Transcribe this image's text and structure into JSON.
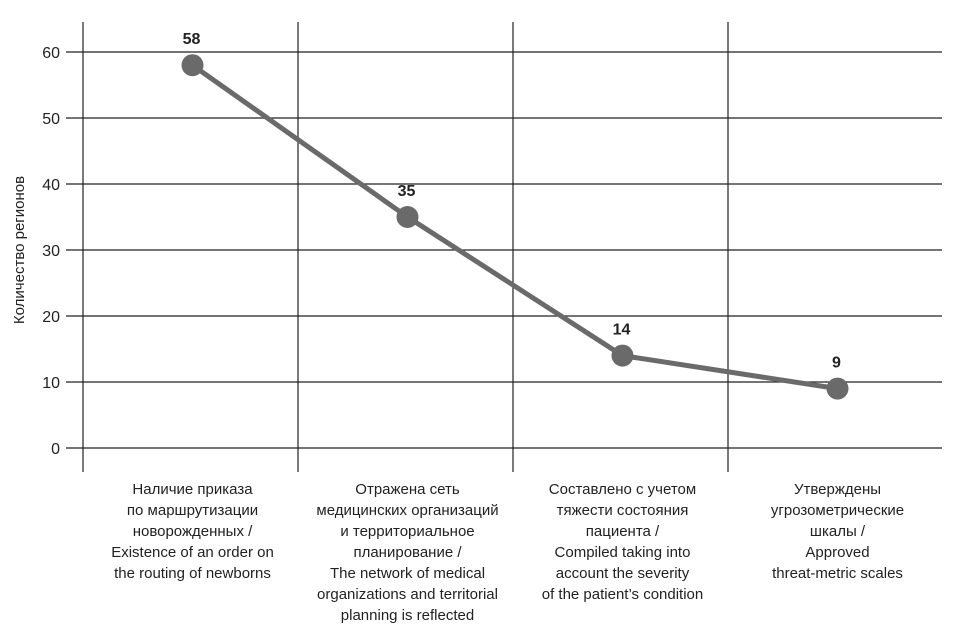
{
  "chart_data": {
    "type": "line",
    "title": "",
    "xlabel": "",
    "ylabel": "Количество регионов",
    "ylim": [
      0,
      60
    ],
    "yticks": [
      0,
      10,
      20,
      30,
      40,
      50,
      60
    ],
    "grid": true,
    "categories": [
      [
        "Наличие приказа",
        "по маршрутизации",
        "новорожденных /",
        "Existence of an order on",
        "the routing of newborns"
      ],
      [
        "Отражена сеть",
        "медицинских организаций",
        "и территориальное",
        "планирование /",
        "The network of medical",
        "organizations and territorial",
        "planning is reflected"
      ],
      [
        "Составлено с учетом",
        "тяжести состояния",
        "пациента /",
        "Compiled taking into",
        "account the severity",
        "of the patient’s condition"
      ],
      [
        "Утверждены",
        "угрозометрические",
        "шкалы /",
        "Approved",
        "threat-metric scales"
      ]
    ],
    "values": [
      58,
      35,
      14,
      9
    ],
    "data_labels": [
      "58",
      "35",
      "14",
      "9"
    ],
    "colors": {
      "line": "#6a6a6a",
      "marker": "#6a6a6a",
      "grid": "#222222"
    }
  }
}
